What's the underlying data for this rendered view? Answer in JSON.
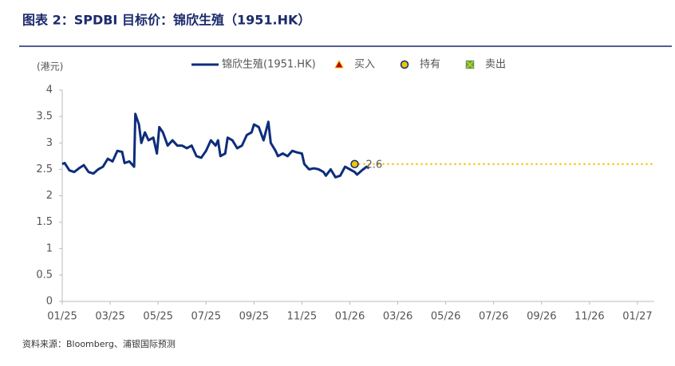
{
  "title": "图表 2：SPDBI 目标价：锦欣生殖（1951.HK）",
  "source": "资料来源：Bloomberg、浦银国际预测",
  "chart_data": {
    "type": "line",
    "ylabel": "(港元)",
    "xlim": [
      0,
      24.7
    ],
    "xticks": [
      {
        "value": 0,
        "label": "01/25"
      },
      {
        "value": 2,
        "label": "03/25"
      },
      {
        "value": 4,
        "label": "05/25"
      },
      {
        "value": 6,
        "label": "07/25"
      },
      {
        "value": 8,
        "label": "09/25"
      },
      {
        "value": 10,
        "label": "11/25"
      },
      {
        "value": 12,
        "label": "01/26"
      },
      {
        "value": 14,
        "label": "03/26"
      },
      {
        "value": 16,
        "label": "05/26"
      },
      {
        "value": 18,
        "label": "07/26"
      },
      {
        "value": 20,
        "label": "09/26"
      },
      {
        "value": 22,
        "label": "11/26"
      },
      {
        "value": 24,
        "label": "01/27"
      }
    ],
    "ylim": [
      0,
      4
    ],
    "yticks": [
      0,
      0.5,
      1,
      1.5,
      2,
      2.5,
      3,
      3.5,
      4
    ],
    "grid": false,
    "legend": "top",
    "series": [
      {
        "name": "锦欣生殖(1951.HK)",
        "color": "#0d2d7c",
        "x": [
          0.0,
          0.1,
          0.3,
          0.5,
          0.7,
          0.9,
          1.1,
          1.3,
          1.5,
          1.7,
          1.9,
          2.1,
          2.3,
          2.5,
          2.6,
          2.8,
          3.0,
          3.05,
          3.2,
          3.3,
          3.45,
          3.6,
          3.8,
          3.95,
          4.05,
          4.2,
          4.4,
          4.6,
          4.8,
          5.0,
          5.2,
          5.4,
          5.6,
          5.8,
          6.0,
          6.2,
          6.4,
          6.5,
          6.6,
          6.8,
          6.9,
          7.1,
          7.3,
          7.5,
          7.7,
          7.9,
          8.0,
          8.2,
          8.4,
          8.6,
          8.7,
          8.9,
          9.0,
          9.2,
          9.4,
          9.6,
          9.8,
          10.0,
          10.1,
          10.3,
          10.5,
          10.7,
          10.9,
          11.0,
          11.2,
          11.4,
          11.6,
          11.8,
          12.0,
          12.2,
          12.3,
          12.5,
          12.7,
          12.8
        ],
        "values": [
          2.6,
          2.62,
          2.48,
          2.45,
          2.52,
          2.58,
          2.45,
          2.42,
          2.5,
          2.55,
          2.7,
          2.65,
          2.85,
          2.83,
          2.62,
          2.65,
          2.55,
          3.55,
          3.35,
          3.0,
          3.2,
          3.05,
          3.1,
          2.8,
          3.3,
          3.2,
          2.95,
          3.05,
          2.95,
          2.95,
          2.9,
          2.95,
          2.75,
          2.72,
          2.85,
          3.05,
          2.95,
          3.05,
          2.75,
          2.8,
          3.1,
          3.05,
          2.9,
          2.95,
          3.15,
          3.2,
          3.35,
          3.3,
          3.05,
          3.4,
          3.0,
          2.85,
          2.75,
          2.8,
          2.75,
          2.85,
          2.82,
          2.8,
          2.6,
          2.5,
          2.52,
          2.5,
          2.45,
          2.38,
          2.5,
          2.35,
          2.38,
          2.55,
          2.5,
          2.45,
          2.4,
          2.48,
          2.55,
          2.52
        ]
      },
      {
        "name": "买入",
        "color": "#c00000",
        "x": [],
        "values": []
      },
      {
        "name": "持有",
        "color": "#0d2d7c",
        "x": [
          12.2
        ],
        "values": [
          2.6
        ]
      },
      {
        "name": "卖出",
        "color": "#4caf50",
        "x": [],
        "values": []
      }
    ]
  }
}
